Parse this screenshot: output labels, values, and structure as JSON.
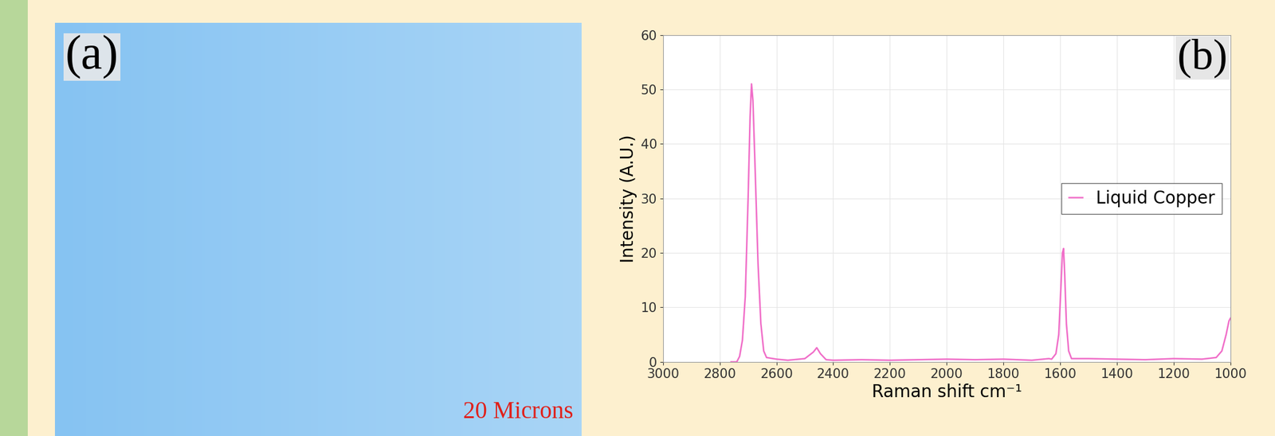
{
  "image_panel": {
    "label": "(a)",
    "scale_text": "20 Microns"
  },
  "chart_data": {
    "type": "line",
    "panel_label": "(b)",
    "x_label": "Raman shift cm⁻¹",
    "y_label": "Intensity (A.U.)",
    "xlim": [
      3000,
      1000
    ],
    "ylim": [
      0,
      60
    ],
    "xticks": [
      3000,
      2800,
      2600,
      2400,
      2200,
      2000,
      1800,
      1600,
      1400,
      1200,
      1000
    ],
    "yticks": [
      0,
      10,
      20,
      30,
      40,
      50,
      60
    ],
    "grid": true,
    "legend": "center right",
    "series": [
      {
        "name": "Liquid Copper",
        "color": "#f06ec8",
        "x": [
          2760,
          2740,
          2730,
          2720,
          2710,
          2700,
          2693,
          2688,
          2683,
          2675,
          2665,
          2655,
          2645,
          2635,
          2600,
          2560,
          2500,
          2470,
          2458,
          2445,
          2425,
          2400,
          2300,
          2200,
          2100,
          2000,
          1900,
          1800,
          1700,
          1640,
          1630,
          1615,
          1605,
          1598,
          1592,
          1588,
          1584,
          1578,
          1570,
          1560,
          1500,
          1400,
          1300,
          1200,
          1100,
          1050,
          1030,
          1015,
          1005,
          1000
        ],
        "values": [
          0,
          0,
          1,
          4,
          12,
          30,
          45,
          51,
          48,
          35,
          18,
          7,
          2,
          0.8,
          0.5,
          0.3,
          0.6,
          1.8,
          2.6,
          1.5,
          0.4,
          0.3,
          0.4,
          0.3,
          0.4,
          0.5,
          0.4,
          0.5,
          0.3,
          0.6,
          0.5,
          1.5,
          5,
          13,
          20,
          20.8,
          16,
          7,
          2,
          0.6,
          0.6,
          0.5,
          0.4,
          0.6,
          0.5,
          0.8,
          2,
          5,
          7.5,
          8
        ]
      }
    ]
  }
}
